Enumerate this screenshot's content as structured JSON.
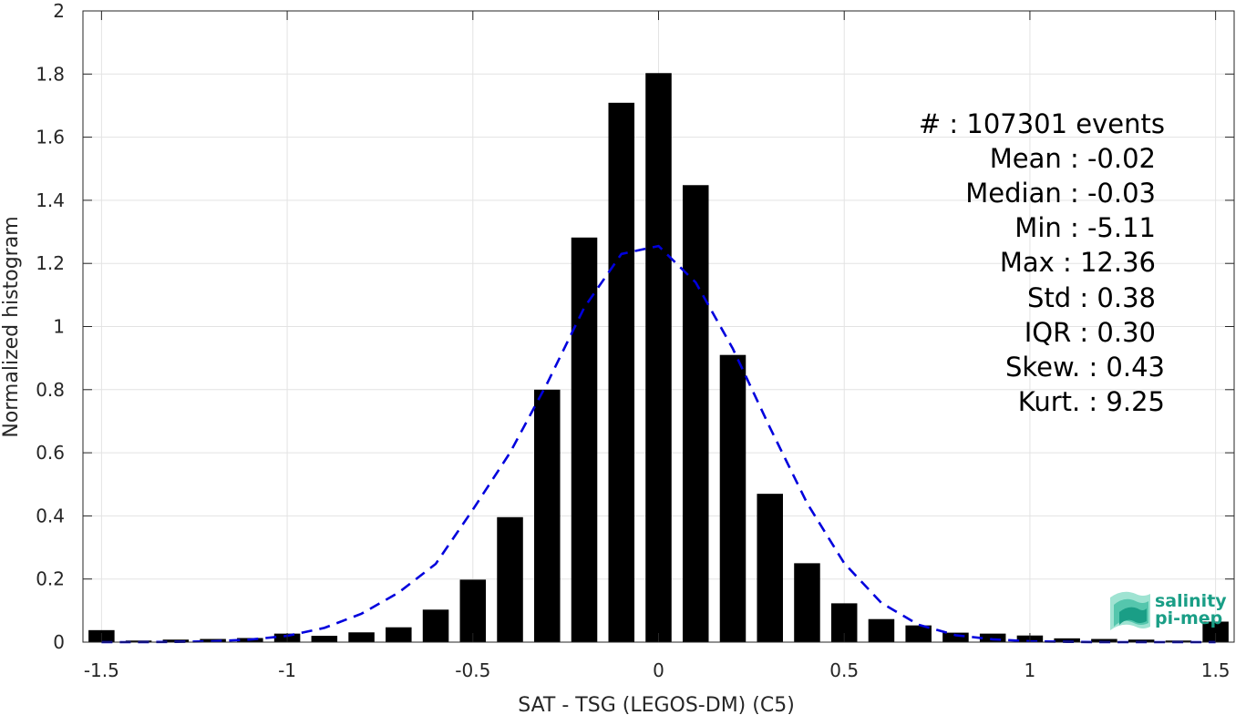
{
  "chart_data": {
    "type": "bar",
    "xlabel": "SAT - TSG (LEGOS-DM) (C5)",
    "ylabel": "Normalized histogram",
    "xlim": [
      -1.55,
      1.55
    ],
    "ylim": [
      0,
      2
    ],
    "x_ticks": [
      "-1.5",
      "-1",
      "-0.5",
      "0",
      "0.5",
      "1",
      "1.5"
    ],
    "x_tick_values": [
      -1.5,
      -1,
      -0.5,
      0,
      0.5,
      1,
      1.5
    ],
    "y_ticks": [
      "0",
      "0.2",
      "0.4",
      "0.6",
      "0.8",
      "1",
      "1.2",
      "1.4",
      "1.6",
      "1.8",
      "2"
    ],
    "y_tick_values": [
      0,
      0.2,
      0.4,
      0.6,
      0.8,
      1,
      1.2,
      1.4,
      1.6,
      1.8,
      2
    ],
    "grid": true,
    "bar_color": "#000000",
    "bars": {
      "x": [
        -1.5,
        -1.4,
        -1.3,
        -1.2,
        -1.1,
        -1.0,
        -0.9,
        -0.8,
        -0.7,
        -0.6,
        -0.5,
        -0.4,
        -0.3,
        -0.2,
        -0.1,
        0.0,
        0.1,
        0.2,
        0.3,
        0.4,
        0.5,
        0.6,
        0.7,
        0.8,
        0.9,
        1.0,
        1.1,
        1.2,
        1.3,
        1.4,
        1.5
      ],
      "values": [
        0.038,
        0.005,
        0.008,
        0.01,
        0.013,
        0.027,
        0.02,
        0.031,
        0.047,
        0.103,
        0.198,
        0.396,
        0.8,
        1.282,
        1.709,
        1.803,
        1.448,
        0.91,
        0.47,
        0.25,
        0.123,
        0.073,
        0.053,
        0.03,
        0.027,
        0.021,
        0.012,
        0.01,
        0.008,
        0.005,
        0.065
      ]
    },
    "fit": {
      "name": "normal fit",
      "style": "dashed",
      "color": "#0000dd",
      "x": [
        -1.5,
        -1.4,
        -1.3,
        -1.2,
        -1.1,
        -1.0,
        -0.9,
        -0.8,
        -0.7,
        -0.6,
        -0.5,
        -0.4,
        -0.3,
        -0.2,
        -0.1,
        0.0,
        0.1,
        0.2,
        0.3,
        0.4,
        0.5,
        0.6,
        0.7,
        0.8,
        0.9,
        1.0,
        1.1,
        1.2,
        1.3,
        1.4,
        1.5
      ],
      "values": [
        0.0,
        0.0,
        0.001,
        0.003,
        0.008,
        0.02,
        0.045,
        0.09,
        0.157,
        0.248,
        0.42,
        0.6,
        0.82,
        1.06,
        1.23,
        1.255,
        1.14,
        0.93,
        0.68,
        0.44,
        0.25,
        0.124,
        0.055,
        0.022,
        0.009,
        0.003,
        0.001,
        0.0,
        0.0,
        0.0,
        0.0
      ]
    },
    "annotations": [
      "#  : 107301 events",
      "Mean : -0.02",
      "Median : -0.03",
      "Min : -5.11",
      "Max : 12.36",
      "Std : 0.38",
      "IQR : 0.30",
      "Skew. : 0.43",
      "Kurt. : 9.25"
    ]
  },
  "logo": {
    "line1": "salinity",
    "line2": "pi-mep",
    "color_light": "#7fd6c2",
    "color_dark": "#1a9e86"
  }
}
